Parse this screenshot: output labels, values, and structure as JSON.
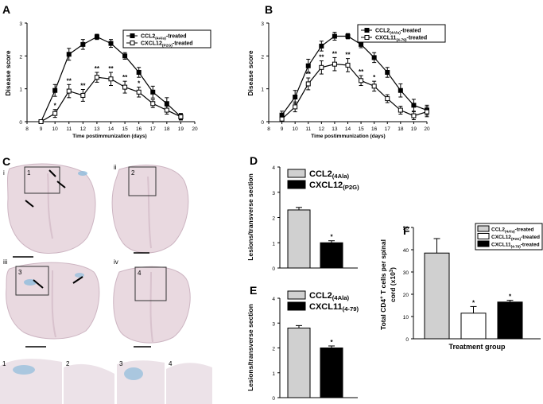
{
  "panels": {
    "a": "A",
    "b": "B",
    "c": "C",
    "d": "D",
    "e": "E",
    "f": "F"
  },
  "colors": {
    "tissue": "#e9d9e0",
    "tissueEdge": "#cdb5c2",
    "stain": "#8fbcdc",
    "gray": "#d0d0d0",
    "black": "#000000"
  },
  "chart_data": [
    {
      "id": "A",
      "type": "line",
      "title": "",
      "xlabel": "Time postimmunization (days)",
      "ylabel": "Disease score",
      "xlim": [
        8,
        20
      ],
      "ylim": [
        0,
        3
      ],
      "xticks": [
        "8",
        "9",
        "10",
        "11",
        "12",
        "13",
        "14",
        "15",
        "16",
        "17",
        "18",
        "19",
        "20"
      ],
      "yticks": [
        "0",
        "1",
        "2",
        "3"
      ],
      "series": [
        {
          "name": "CCL2",
          "sub": "(4Ala)",
          "suffix": "-treated",
          "marker": "filled",
          "x": [
            9,
            10,
            11,
            12,
            13,
            14,
            15,
            16,
            17,
            18,
            19
          ],
          "values": [
            0,
            0.95,
            2.05,
            2.35,
            2.58,
            2.38,
            2.0,
            1.5,
            0.9,
            0.55,
            0.15
          ],
          "err": [
            0,
            0.18,
            0.18,
            0.15,
            0.08,
            0.12,
            0.1,
            0.15,
            0.18,
            0.18,
            0.1
          ]
        },
        {
          "name": "CXCL12",
          "sub": "(P2G)",
          "suffix": "-treated",
          "marker": "open",
          "x": [
            9,
            10,
            11,
            12,
            13,
            14,
            15,
            16,
            17,
            18,
            19
          ],
          "values": [
            0,
            0.25,
            0.93,
            0.8,
            1.35,
            1.3,
            1.05,
            0.9,
            0.55,
            0.35,
            0.15
          ],
          "err": [
            0,
            0.12,
            0.2,
            0.18,
            0.15,
            0.2,
            0.18,
            0.15,
            0.12,
            0.12,
            0.08
          ]
        }
      ],
      "annotations": [
        {
          "x": 10,
          "text": "*"
        },
        {
          "x": 11,
          "text": "**"
        },
        {
          "x": 12,
          "text": "**"
        },
        {
          "x": 13,
          "text": "**"
        },
        {
          "x": 14,
          "text": "**"
        },
        {
          "x": 15,
          "text": "**"
        },
        {
          "x": 16,
          "text": "*"
        }
      ]
    },
    {
      "id": "B",
      "type": "line",
      "title": "",
      "xlabel": "Time postimmunization (days)",
      "ylabel": "Disease score",
      "xlim": [
        8,
        20
      ],
      "ylim": [
        0,
        3
      ],
      "xticks": [
        "8",
        "9",
        "10",
        "11",
        "12",
        "13",
        "14",
        "15",
        "16",
        "17",
        "18",
        "19",
        "20"
      ],
      "yticks": [
        "0",
        "1",
        "2",
        "3"
      ],
      "series": [
        {
          "name": "CCL2",
          "sub": "(4Ala)",
          "suffix": "-treated",
          "marker": "filled",
          "x": [
            9,
            10,
            11,
            12,
            13,
            14,
            15,
            16,
            17,
            18,
            19,
            20
          ],
          "values": [
            0.2,
            0.75,
            1.7,
            2.3,
            2.6,
            2.6,
            2.35,
            1.95,
            1.5,
            0.95,
            0.5,
            0.35
          ],
          "err": [
            0.12,
            0.2,
            0.2,
            0.15,
            0.12,
            0.08,
            0.1,
            0.15,
            0.15,
            0.2,
            0.18,
            0.15
          ]
        },
        {
          "name": "CXCL11",
          "sub": "(4-79)",
          "suffix": "-treated",
          "marker": "open",
          "x": [
            9,
            10,
            11,
            12,
            13,
            14,
            15,
            16,
            17,
            18,
            19,
            20
          ],
          "values": [
            0.08,
            0.45,
            1.15,
            1.65,
            1.75,
            1.72,
            1.25,
            1.08,
            0.7,
            0.35,
            0.18,
            0.3
          ],
          "err": [
            0.08,
            0.15,
            0.18,
            0.2,
            0.2,
            0.2,
            0.15,
            0.15,
            0.12,
            0.12,
            0.12,
            0.15
          ]
        }
      ],
      "annotations": [
        {
          "x": 11,
          "text": "**"
        },
        {
          "x": 12,
          "text": "**"
        },
        {
          "x": 13,
          "text": "**"
        },
        {
          "x": 14,
          "text": "**"
        },
        {
          "x": 15,
          "text": "**"
        },
        {
          "x": 16,
          "text": "*"
        }
      ]
    },
    {
      "id": "D",
      "type": "bar",
      "ylabel": "Lesions/transverse section",
      "ylim": [
        0,
        4
      ],
      "yticks": [
        "0",
        "1",
        "2",
        "3",
        "4"
      ],
      "categories": [
        "CCL2(4Ala)",
        "CXCL12(P2G)"
      ],
      "legend": [
        {
          "name": "CCL2",
          "sub": "(4Ala)",
          "fill": "gray"
        },
        {
          "name": "CXCL12",
          "sub": "(P2G)",
          "fill": "black"
        }
      ],
      "values": [
        2.3,
        1.0
      ],
      "err": [
        0.1,
        0.08
      ],
      "annotations": [
        {
          "index": 1,
          "text": "*"
        }
      ]
    },
    {
      "id": "E",
      "type": "bar",
      "ylabel": "Lesions/transverse section",
      "ylim": [
        0,
        4
      ],
      "yticks": [
        "0",
        "1",
        "2",
        "3",
        "4"
      ],
      "categories": [
        "CCL2(4Ala)",
        "CXCL11(4-79)"
      ],
      "legend": [
        {
          "name": "CCL2",
          "sub": "(4Ala)",
          "fill": "gray"
        },
        {
          "name": "CXCL11",
          "sub": "(4-79)",
          "fill": "black"
        }
      ],
      "values": [
        2.8,
        2.0
      ],
      "err": [
        0.1,
        0.08
      ],
      "annotations": [
        {
          "index": 1,
          "text": "*"
        }
      ]
    },
    {
      "id": "F",
      "type": "bar",
      "ylabel_lines": [
        "Total CD4",
        "+",
        " T cells per spinal",
        "cord (x10",
        "3",
        ")"
      ],
      "xlabel": "Treatment group",
      "ylim": [
        0,
        50
      ],
      "yticks": [
        "0",
        "10",
        "20",
        "30",
        "40",
        "50"
      ],
      "categories": [
        "CCL2(4Ala)",
        "CXCL12(P2G)",
        "CXCL11(4-79)"
      ],
      "legend": [
        {
          "name": "CCL2",
          "sub": "(4Ala)",
          "suffix": "-treated",
          "fill": "gray"
        },
        {
          "name": "CXCL12",
          "sub": "(P2G)",
          "suffix": "-treated",
          "fill": "white"
        },
        {
          "name": "CXCL11",
          "sub": "(4-79)",
          "suffix": "-treated",
          "fill": "black"
        }
      ],
      "values": [
        38.5,
        11.5,
        16.5
      ],
      "err": [
        6.5,
        3,
        0.8
      ],
      "annotations": [
        {
          "index": 1,
          "text": "*"
        },
        {
          "index": 2,
          "text": "*"
        }
      ]
    }
  ],
  "histology": {
    "roman": [
      "i",
      "ii",
      "iii",
      "iv"
    ],
    "boxes": [
      "1",
      "2",
      "3",
      "4"
    ],
    "insets": [
      "1",
      "2",
      "3",
      "4"
    ]
  }
}
